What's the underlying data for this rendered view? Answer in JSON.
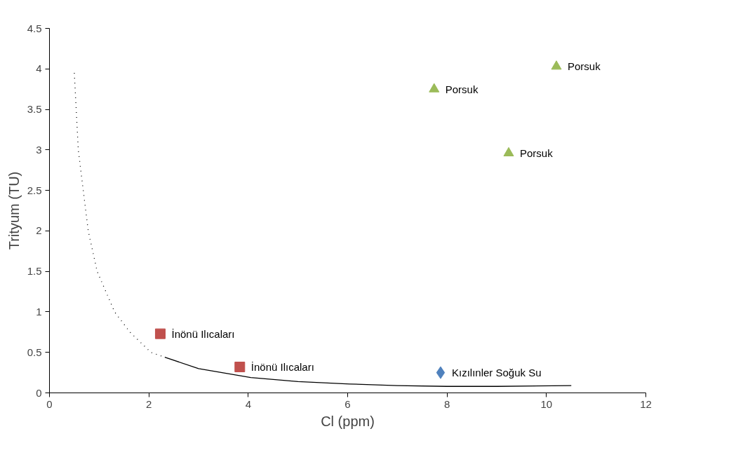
{
  "chart_data": {
    "type": "scatter",
    "xlabel": "Cl (ppm)",
    "ylabel": "Trityum (TU)",
    "xlim": [
      0,
      12
    ],
    "xticks": [
      0,
      2,
      4,
      6,
      8,
      10,
      12
    ],
    "ylim": [
      0,
      4.5
    ],
    "yticks": [
      0,
      0.5,
      1,
      1.5,
      2,
      2.5,
      3,
      3.5,
      4,
      4.5
    ],
    "grid": false,
    "series": [
      {
        "type": "line",
        "color": "#000000",
        "line_style": "dotted",
        "marker": "none",
        "x": [
          0.5,
          0.58,
          0.78,
          0.96,
          1.31,
          1.62,
          2.04,
          2.32
        ],
        "values": [
          3.95,
          3.0,
          2.0,
          1.5,
          1.0,
          0.75,
          0.5,
          0.44
        ]
      },
      {
        "type": "line",
        "color": "#000000",
        "line_style": "solid",
        "marker": "none",
        "x": [
          2.32,
          3.0,
          4.05,
          5.0,
          6.04,
          7.0,
          8.0,
          9.0,
          10.5
        ],
        "values": [
          0.44,
          0.3,
          0.19,
          0.14,
          0.11,
          0.09,
          0.08,
          0.08,
          0.09
        ]
      },
      {
        "type": "scatter",
        "color": "#9bbb59",
        "marker": "triangle",
        "x": [
          10.2,
          7.74,
          9.24
        ],
        "values": [
          4.03,
          3.75,
          2.96
        ]
      },
      {
        "type": "scatter",
        "color": "#c0504d",
        "marker": "square",
        "x": [
          2.23,
          3.83
        ],
        "values": [
          0.73,
          0.32
        ]
      },
      {
        "type": "scatter",
        "color": "#4f81bd",
        "marker": "diamond",
        "x": [
          7.87
        ],
        "values": [
          0.25
        ]
      }
    ],
    "annotations": [
      {
        "text": "Porsuk",
        "x": 10.2,
        "y": 4.03
      },
      {
        "text": "Porsuk",
        "x": 7.74,
        "y": 3.75
      },
      {
        "text": "Porsuk",
        "x": 9.24,
        "y": 2.96
      },
      {
        "text": "İnönü Ilıcaları",
        "x": 2.23,
        "y": 0.73
      },
      {
        "text": "İnönü Ilıcaları",
        "x": 3.83,
        "y": 0.32
      },
      {
        "text": "Kızılınler Soğuk Su",
        "x": 7.87,
        "y": 0.25
      }
    ]
  }
}
